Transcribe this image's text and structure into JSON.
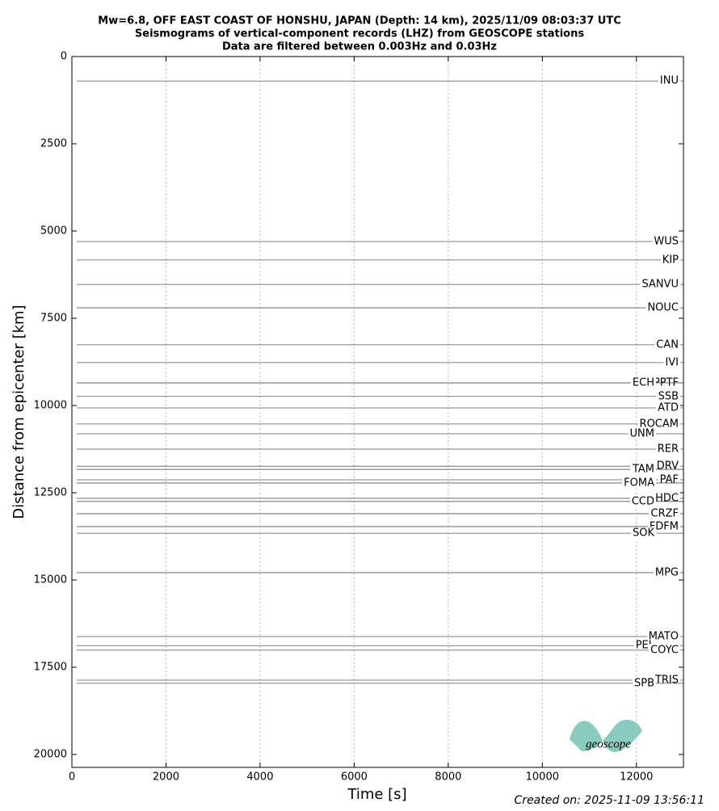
{
  "chart_data": {
    "type": "record-section",
    "title": [
      "Mw=6.8, OFF EAST COAST OF HONSHU, JAPAN (Depth: 14 km), 2025/11/09 08:03:37 UTC",
      "Seismograms of vertical-component records (LHZ) from GEOSCOPE stations",
      "Data are filtered between 0.003Hz and 0.03Hz"
    ],
    "xlabel": "Time [s]",
    "ylabel": "Distance from epicenter [km]",
    "xlim": [
      0,
      13000
    ],
    "xticks": [
      0,
      2000,
      4000,
      6000,
      8000,
      10000,
      12000
    ],
    "ylim": [
      0,
      20370
    ],
    "yticks": [
      0,
      2500,
      5000,
      7500,
      10000,
      12500,
      15000,
      17500,
      20000
    ],
    "y_inverted": true,
    "grid": "x",
    "color": "#555555",
    "stations": [
      "INU",
      "WUS",
      "KIP",
      "SANVU",
      "NOUC",
      "CAN",
      "IVI",
      "PPTF",
      "ECH",
      "SSB",
      "ATD",
      "ROCAM",
      "UNM",
      "RER",
      "DRV",
      "TAM",
      "PAF",
      "FOMA",
      "HDC",
      "CCD",
      "CRZF",
      "FDFM",
      "SOK",
      "MPG",
      "MATO",
      "PEL",
      "COYC",
      "TRIS",
      "SPB"
    ],
    "distances": [
      700,
      5300,
      5830,
      6530,
      7200,
      8260,
      8770,
      9350,
      9350,
      9740,
      10070,
      10530,
      10810,
      11250,
      11740,
      11830,
      12130,
      12220,
      12660,
      12750,
      13100,
      13470,
      13660,
      14790,
      16620,
      16880,
      17010,
      17870,
      17960
    ],
    "footer": "Created on: 2025-11-09 13:56:11",
    "logo": "geoscope"
  }
}
